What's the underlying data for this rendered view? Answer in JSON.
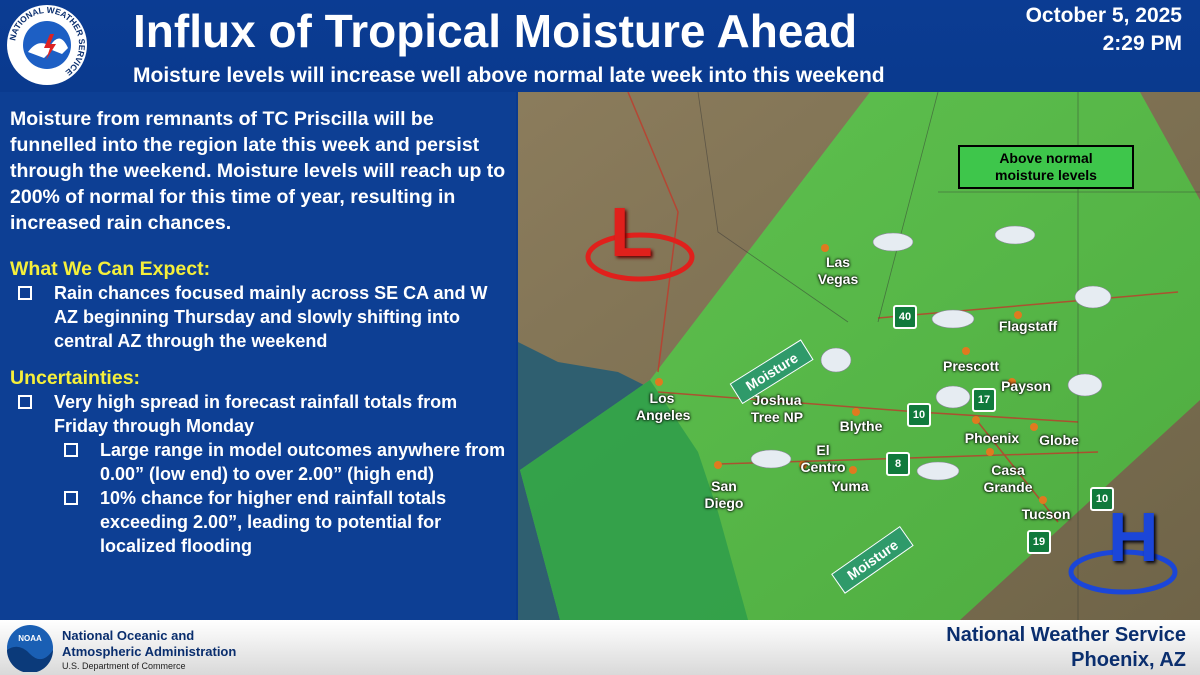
{
  "header": {
    "logo_text": "NATIONAL WEATHER SERVICE",
    "title": "Influx of Tropical Moisture Ahead",
    "subtitle": "Moisture levels will increase well above normal late week into this weekend",
    "date": "October 5, 2025",
    "time": "2:29 PM"
  },
  "panel": {
    "intro": "Moisture from remnants of TC Priscilla will be funnelled into the region late this week and persist through the weekend. Moisture levels will reach up to 200% of normal for this time of year, resulting in increased rain chances.",
    "sections": [
      {
        "heading": "What We Can Expect:",
        "items": [
          {
            "text": "Rain chances focused mainly across SE CA and W AZ beginning Thursday and slowly shifting into central AZ through the weekend"
          }
        ]
      },
      {
        "heading": "Uncertainties:",
        "items": [
          {
            "text": "Very high spread in forecast rainfall totals from Friday through Monday",
            "subitems": [
              "Large range in model outcomes anywhere from 0.00” (low end) to over 2.00” (high end)",
              "10% chance for higher end rainfall totals exceeding 2.00”, leading to potential for localized flooding"
            ]
          }
        ]
      }
    ]
  },
  "map": {
    "legend": "Above normal moisture levels",
    "low": "L",
    "high": "H",
    "arrows": [
      "Moisture",
      "Moisture"
    ],
    "cities": [
      "Las Vegas",
      "Flagstaff",
      "Prescott",
      "Payson",
      "Los Angeles",
      "Joshua Tree NP",
      "Blythe",
      "Phoenix",
      "Globe",
      "San Diego",
      "El Centro",
      "Yuma",
      "Casa Grande",
      "Tucson"
    ],
    "shields": [
      "40",
      "10",
      "17",
      "8",
      "10",
      "19"
    ]
  },
  "footer": {
    "noaa_logo": "NOAA",
    "noaa_line1": "National Oceanic and",
    "noaa_line2": "Atmospheric Administration",
    "noaa_line3": "U.S. Department of Commerce",
    "office_line1": "National Weather Service",
    "office_line2": "Phoenix, AZ"
  }
}
